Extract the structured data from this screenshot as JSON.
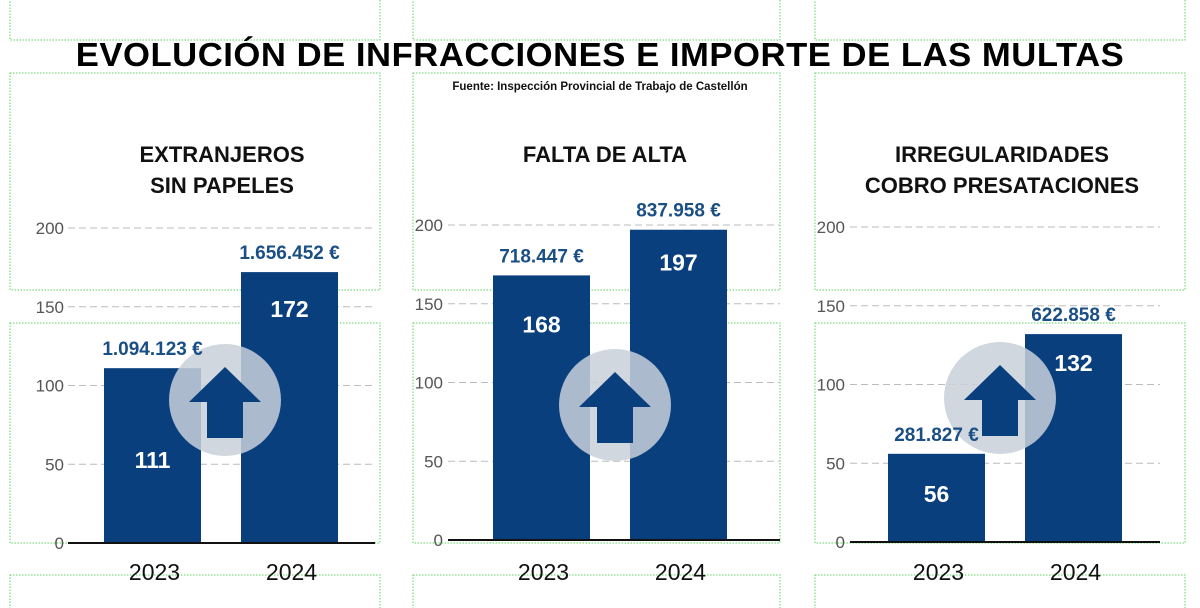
{
  "header": {
    "title": "EVOLUCIÓN DE INFRACCIONES E IMPORTE DE LAS MULTAS",
    "source": "Fuente:  Inspección Provincial de Trabajo de Castellón"
  },
  "colors": {
    "bar": "#0a3f7e",
    "amount_text": "#1a4f86",
    "arrow_circle": "#c8d0d9",
    "grid": "#bbbbbb"
  },
  "icons": [
    "arrow-up-icon"
  ],
  "chart_data": [
    {
      "type": "bar",
      "title_lines": [
        "EXTRANJEROS",
        "SIN PAPELES"
      ],
      "categories": [
        "2023",
        "2024"
      ],
      "values": [
        111,
        172
      ],
      "value_labels": [
        "111",
        "172"
      ],
      "amount_labels": [
        "1.094.123 €",
        "1.656.452 €"
      ],
      "ylim": [
        0,
        200
      ],
      "yticks": [
        "0",
        "50",
        "100",
        "150",
        "200"
      ],
      "grid": true
    },
    {
      "type": "bar",
      "title_lines": [
        "FALTA DE ALTA"
      ],
      "categories": [
        "2023",
        "2024"
      ],
      "values": [
        168,
        197
      ],
      "value_labels": [
        "168",
        "197"
      ],
      "amount_labels": [
        "718.447 €",
        "837.958 €"
      ],
      "ylim": [
        0,
        200
      ],
      "yticks": [
        "0",
        "50",
        "100",
        "150",
        "200"
      ],
      "grid": true
    },
    {
      "type": "bar",
      "title_lines": [
        "IRREGULARIDADES",
        "COBRO PRESATACIONES"
      ],
      "categories": [
        "2023",
        "2024"
      ],
      "values": [
        56,
        132
      ],
      "value_labels": [
        "56",
        "132"
      ],
      "amount_labels": [
        "281.827 €",
        "622.858 €"
      ],
      "ylim": [
        0,
        200
      ],
      "yticks": [
        "0",
        "50",
        "100",
        "150",
        "200"
      ],
      "grid": true
    }
  ]
}
